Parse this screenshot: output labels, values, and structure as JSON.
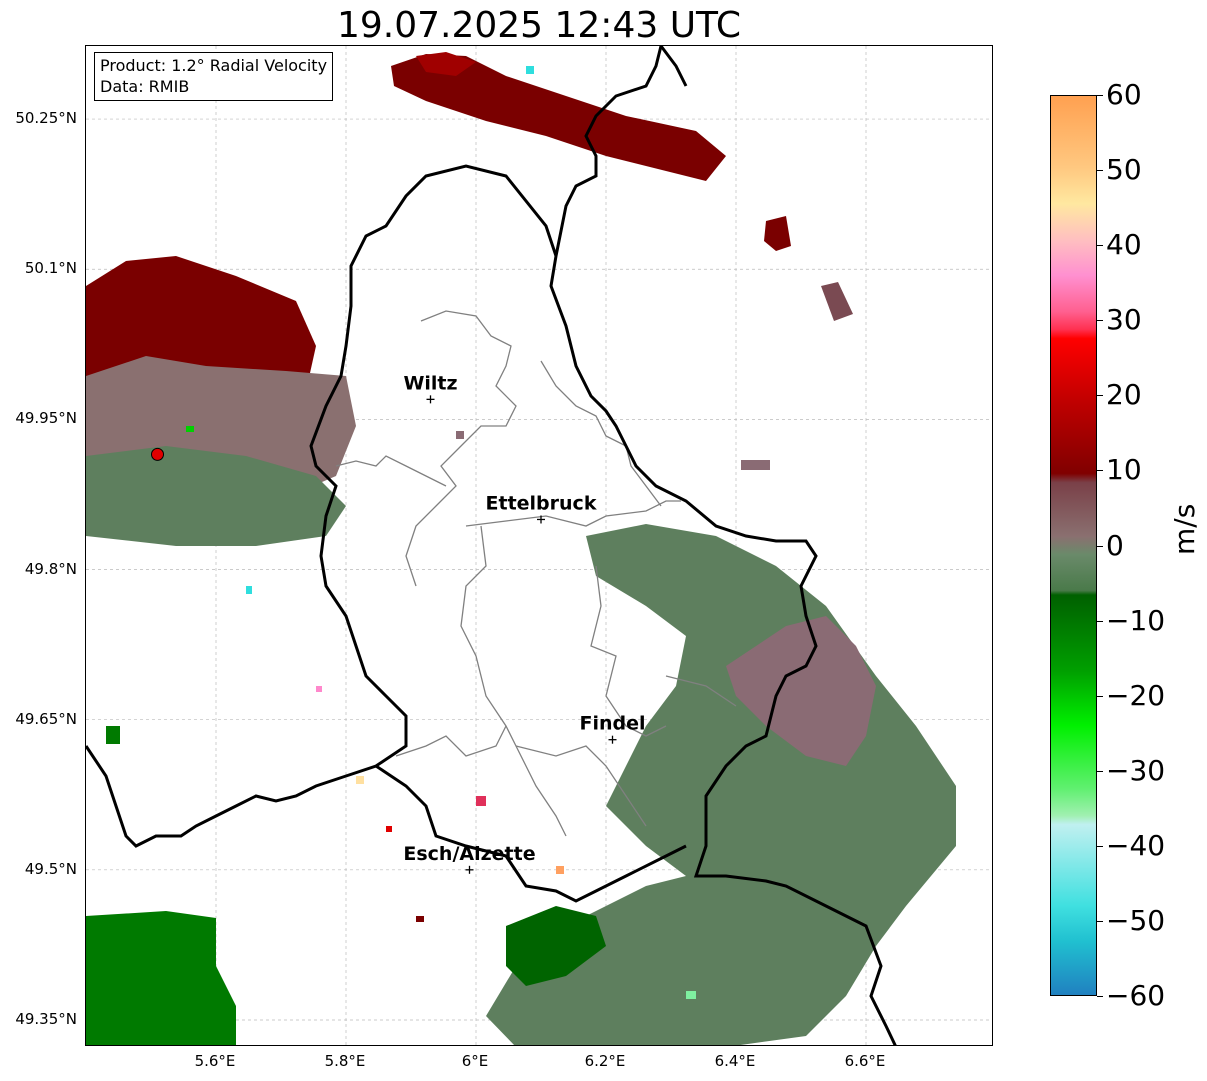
{
  "title": "19.07.2025 12:43 UTC",
  "info_box": {
    "product": "Product: 1.2° Radial Velocity",
    "source": "Data: RMIB"
  },
  "lat_labels": [
    "50.25°N",
    "50.1°N",
    "49.95°N",
    "49.8°N",
    "49.65°N",
    "49.5°N",
    "49.35°N"
  ],
  "lon_labels": [
    "5.6°E",
    "5.8°E",
    "6°E",
    "6.2°E",
    "6.4°E",
    "6.6°E"
  ],
  "colorbar": {
    "unit": "m/s",
    "ticks": [
      "60",
      "50",
      "40",
      "30",
      "20",
      "10",
      "0",
      "−10",
      "−20",
      "−30",
      "−40",
      "−50",
      "−60"
    ],
    "range": [
      -60,
      60
    ],
    "colors": {
      "strong_inbound": "#1f78b4",
      "inbound_cyan": "#2fdede",
      "inbound_light": "#b3f2f2",
      "inbound_lightgreen": "#7ff0a0",
      "inbound_green": "#00d000",
      "inbound_darkgreen": "#006400",
      "near_zero_green": "#5e7f5e",
      "near_zero_mauve": "#8a6b74",
      "outbound_darkred": "#7a0000",
      "outbound_red": "#e00000",
      "outbound_pink": "#ff88cc",
      "outbound_peach": "#ffe0a0",
      "outbound_orange": "#ffa060"
    }
  },
  "cities": [
    {
      "name": "Wiltz",
      "lon": 5.93,
      "lat": 49.97
    },
    {
      "name": "Ettelbruck",
      "lon": 6.1,
      "lat": 49.85
    },
    {
      "name": "Findel",
      "lon": 6.21,
      "lat": 49.63
    },
    {
      "name": "Esch/Alzette",
      "lon": 5.99,
      "lat": 49.5
    }
  ],
  "radar_site": {
    "lon": 5.51,
    "lat": 49.915
  },
  "map_extent": {
    "lon": [
      5.4,
      6.8
    ],
    "lat": [
      49.3,
      50.3
    ]
  },
  "grid": true
}
